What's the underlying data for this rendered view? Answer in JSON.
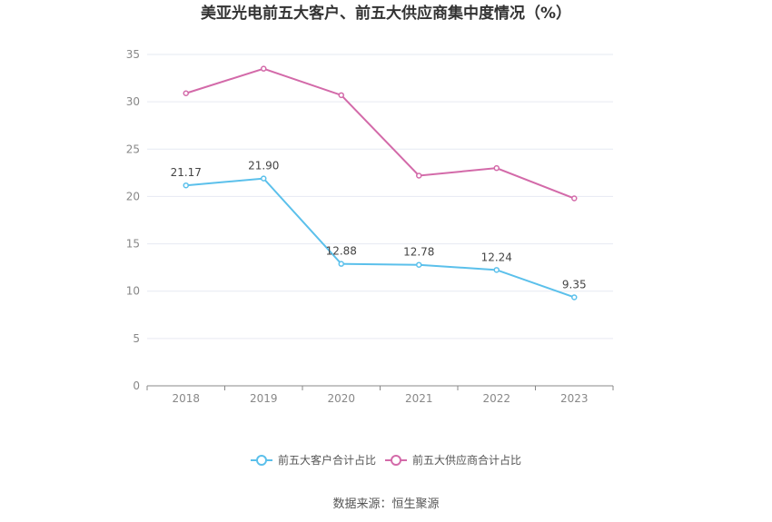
{
  "chart_data": {
    "type": "line",
    "title": "美亚光电前五大客户、前五大供应商集中度情况（%）",
    "categories": [
      "2018",
      "2019",
      "2020",
      "2021",
      "2022",
      "2023"
    ],
    "ylim": [
      0,
      35
    ],
    "yticks": [
      0,
      5,
      10,
      15,
      20,
      25,
      30,
      35
    ],
    "grid": true,
    "legend_position": "bottom",
    "series": [
      {
        "name": "前五大客户合计占比",
        "color": "#5bc0eb",
        "values": [
          21.17,
          21.9,
          12.88,
          12.78,
          12.24,
          9.35
        ],
        "labels": [
          "21.17",
          "21.90",
          "12.88",
          "12.78",
          "12.24",
          "9.35"
        ]
      },
      {
        "name": "前五大供应商合计占比",
        "color": "#d36aa9",
        "values": [
          30.9,
          33.5,
          30.7,
          22.2,
          23.0,
          19.8
        ]
      }
    ]
  },
  "source": "数据来源：恒生聚源"
}
